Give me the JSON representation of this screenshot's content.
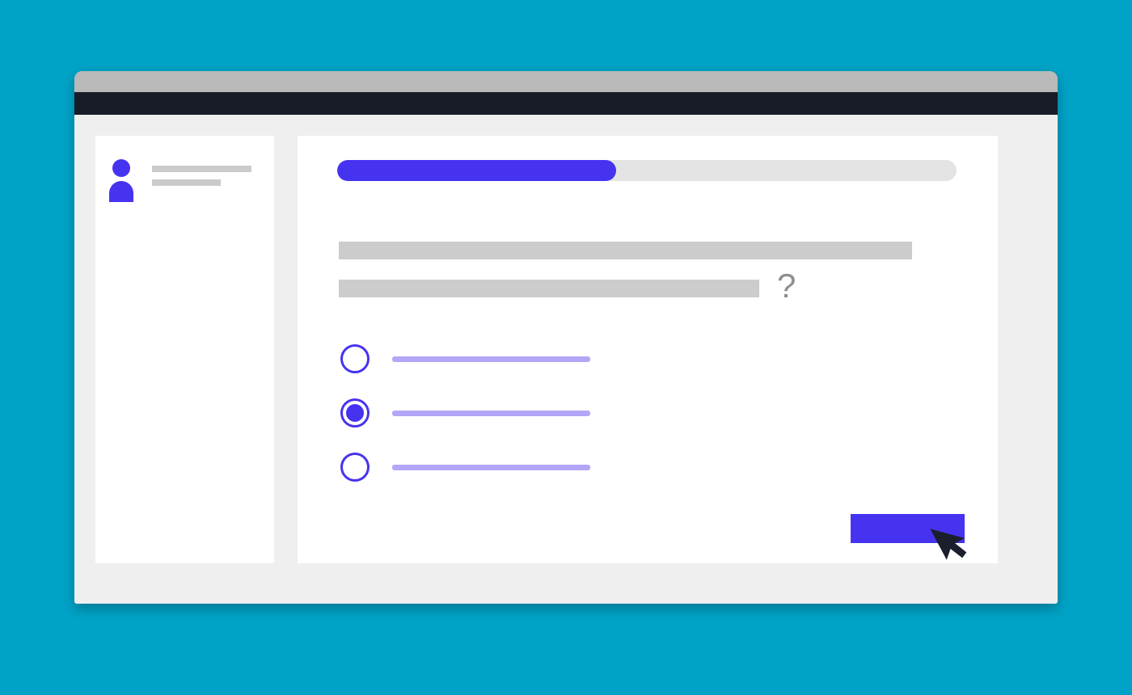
{
  "colors": {
    "background": "#00a3c7",
    "accent": "#4633f0",
    "accent_light": "#b3a6f7",
    "window_body": "#efefef",
    "titlebar": "#b9b9b9",
    "navbar": "#171c28",
    "panel": "#ffffff",
    "placeholder_gray": "#cccccc",
    "progress_track": "#e4e4e4",
    "question_mark_gray": "#8f8f8f",
    "cursor_dark": "#1a1f2b"
  },
  "window": {
    "titlebar_icon": "browser-titlebar",
    "navbar_icon": "browser-navbar"
  },
  "sidebar": {
    "avatar_icon": "user-avatar-icon",
    "placeholder_lines": 2
  },
  "quiz": {
    "progress": {
      "percent": 45
    },
    "question": {
      "placeholder_lines": 2,
      "question_mark": "?"
    },
    "options": [
      {
        "selected": false
      },
      {
        "selected": true
      },
      {
        "selected": false
      }
    ],
    "submit_button": {
      "label": ""
    }
  },
  "cursor": {
    "icon": "arrow-pointer-icon"
  }
}
